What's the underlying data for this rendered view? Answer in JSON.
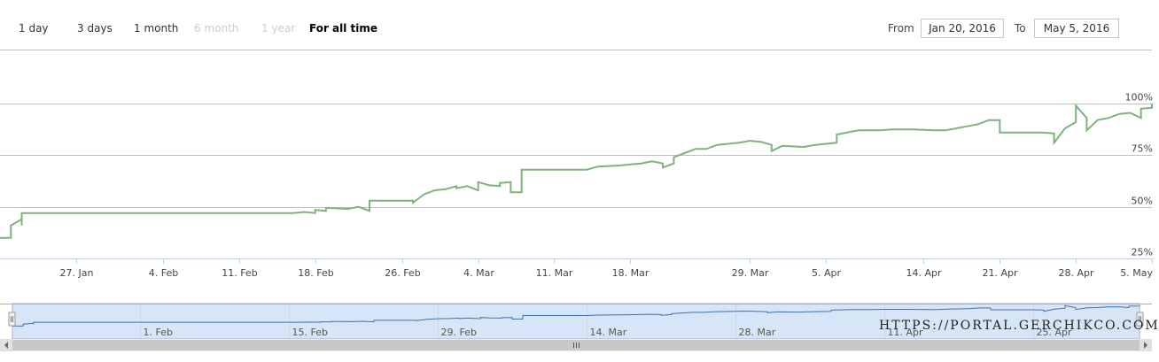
{
  "range_selector": {
    "buttons": [
      {
        "label": "1 day",
        "state": "normal"
      },
      {
        "label": "3 days",
        "state": "normal"
      },
      {
        "label": "1 month",
        "state": "normal"
      },
      {
        "label": "6 month",
        "state": "disabled"
      },
      {
        "label": "1 year",
        "state": "disabled"
      },
      {
        "label": "For all time",
        "state": "active"
      }
    ],
    "from_label": "From",
    "from_value": "Jan 20, 2016",
    "to_label": "To",
    "to_value": "May 5, 2016"
  },
  "watermark": "HTTPS://PORTAL.GERCHIKCO.COM/",
  "colors": {
    "line": "#7fb27f",
    "navigator_line": "#4572a7",
    "navigator_fill": "#d6e6f7",
    "grid": "#c0c0c0"
  },
  "chart_data": {
    "type": "line",
    "x_range": [
      "2016-01-20",
      "2016-05-05"
    ],
    "y_range": [
      25,
      100
    ],
    "y_ticks": [
      {
        "value": 100,
        "label": "100%"
      },
      {
        "value": 75,
        "label": "75%"
      },
      {
        "value": 50,
        "label": "50%"
      },
      {
        "value": 25,
        "label": "25%"
      }
    ],
    "x_ticks": [
      {
        "date": "2016-01-27",
        "label": "27. Jan"
      },
      {
        "date": "2016-02-04",
        "label": "4. Feb"
      },
      {
        "date": "2016-02-11",
        "label": "11. Feb"
      },
      {
        "date": "2016-02-18",
        "label": "18. Feb"
      },
      {
        "date": "2016-02-26",
        "label": "26. Feb"
      },
      {
        "date": "2016-03-04",
        "label": "4. Mar"
      },
      {
        "date": "2016-03-11",
        "label": "11. Mar"
      },
      {
        "date": "2016-03-18",
        "label": "18. Mar"
      },
      {
        "date": "2016-03-29",
        "label": "29. Mar"
      },
      {
        "date": "2016-04-05",
        "label": "5. Apr"
      },
      {
        "date": "2016-04-14",
        "label": "14. Apr"
      },
      {
        "date": "2016-04-21",
        "label": "21. Apr"
      },
      {
        "date": "2016-04-28",
        "label": "28. Apr"
      },
      {
        "date": "2016-05-05",
        "label": "5. May"
      }
    ],
    "navigator_ticks": [
      {
        "date": "2016-02-01",
        "label": "1. Feb"
      },
      {
        "date": "2016-02-15",
        "label": "15. Feb"
      },
      {
        "date": "2016-02-29",
        "label": "29. Feb"
      },
      {
        "date": "2016-03-14",
        "label": "14. Mar"
      },
      {
        "date": "2016-03-28",
        "label": "28. Mar"
      },
      {
        "date": "2016-04-11",
        "label": "11. Apr"
      },
      {
        "date": "2016-04-25",
        "label": "25. Apr"
      }
    ],
    "series": [
      {
        "points": [
          [
            "2016-01-20",
            35
          ],
          [
            "2016-01-21",
            35
          ],
          [
            "2016-01-21",
            41
          ],
          [
            "2016-01-22",
            44
          ],
          [
            "2016-01-22",
            41
          ],
          [
            "2016-01-22",
            47
          ],
          [
            "2016-02-16",
            47
          ],
          [
            "2016-02-17",
            47.5
          ],
          [
            "2016-02-18",
            47
          ],
          [
            "2016-02-18",
            48.5
          ],
          [
            "2016-02-19",
            48
          ],
          [
            "2016-02-19",
            49.5
          ],
          [
            "2016-02-21",
            49
          ],
          [
            "2016-02-22",
            50
          ],
          [
            "2016-02-23",
            48
          ],
          [
            "2016-02-23",
            53
          ],
          [
            "2016-02-25",
            53
          ],
          [
            "2016-02-27",
            53
          ],
          [
            "2016-02-27",
            52
          ],
          [
            "2016-02-28",
            56
          ],
          [
            "2016-02-29",
            58
          ],
          [
            "2016-03-01",
            58.5
          ],
          [
            "2016-03-02",
            60
          ],
          [
            "2016-03-02",
            59
          ],
          [
            "2016-03-03",
            60
          ],
          [
            "2016-03-04",
            58
          ],
          [
            "2016-03-04",
            62
          ],
          [
            "2016-03-05",
            60.5
          ],
          [
            "2016-03-06",
            60
          ],
          [
            "2016-03-06",
            61.5
          ],
          [
            "2016-03-07",
            62
          ],
          [
            "2016-03-07",
            57
          ],
          [
            "2016-03-08",
            57
          ],
          [
            "2016-03-08",
            68
          ],
          [
            "2016-03-10",
            68
          ],
          [
            "2016-03-12",
            68
          ],
          [
            "2016-03-14",
            68
          ],
          [
            "2016-03-15",
            69.5
          ],
          [
            "2016-03-17",
            70
          ],
          [
            "2016-03-18",
            70.5
          ],
          [
            "2016-03-19",
            71
          ],
          [
            "2016-03-20",
            72
          ],
          [
            "2016-03-21",
            71
          ],
          [
            "2016-03-21",
            69
          ],
          [
            "2016-03-22",
            71
          ],
          [
            "2016-03-22",
            74
          ],
          [
            "2016-03-24",
            78
          ],
          [
            "2016-03-25",
            78
          ],
          [
            "2016-03-26",
            80
          ],
          [
            "2016-03-28",
            81
          ],
          [
            "2016-03-29",
            82
          ],
          [
            "2016-03-30",
            81.5
          ],
          [
            "2016-03-31",
            80
          ],
          [
            "2016-03-31",
            77
          ],
          [
            "2016-04-01",
            79.5
          ],
          [
            "2016-04-03",
            79
          ],
          [
            "2016-04-04",
            80
          ],
          [
            "2016-04-05",
            80.5
          ],
          [
            "2016-04-06",
            81
          ],
          [
            "2016-04-06",
            85
          ],
          [
            "2016-04-08",
            87
          ],
          [
            "2016-04-10",
            87
          ],
          [
            "2016-04-11",
            87.5
          ],
          [
            "2016-04-13",
            87.5
          ],
          [
            "2016-04-15",
            87
          ],
          [
            "2016-04-16",
            87
          ],
          [
            "2016-04-17",
            88
          ],
          [
            "2016-04-18",
            89
          ],
          [
            "2016-04-19",
            90
          ],
          [
            "2016-04-20",
            92
          ],
          [
            "2016-04-21",
            92
          ],
          [
            "2016-04-21",
            86
          ],
          [
            "2016-04-23",
            86
          ],
          [
            "2016-04-25",
            86
          ],
          [
            "2016-04-26",
            85.5
          ],
          [
            "2016-04-26",
            81
          ],
          [
            "2016-04-27",
            88
          ],
          [
            "2016-04-28",
            91
          ],
          [
            "2016-04-28",
            99
          ],
          [
            "2016-04-29",
            93
          ],
          [
            "2016-04-29",
            87
          ],
          [
            "2016-04-30",
            92
          ],
          [
            "2016-05-01",
            93
          ],
          [
            "2016-05-02",
            95
          ],
          [
            "2016-05-03",
            95.5
          ],
          [
            "2016-05-04",
            93
          ],
          [
            "2016-05-04",
            97.5
          ],
          [
            "2016-05-05",
            98
          ],
          [
            "2016-05-05",
            100
          ]
        ]
      }
    ]
  }
}
